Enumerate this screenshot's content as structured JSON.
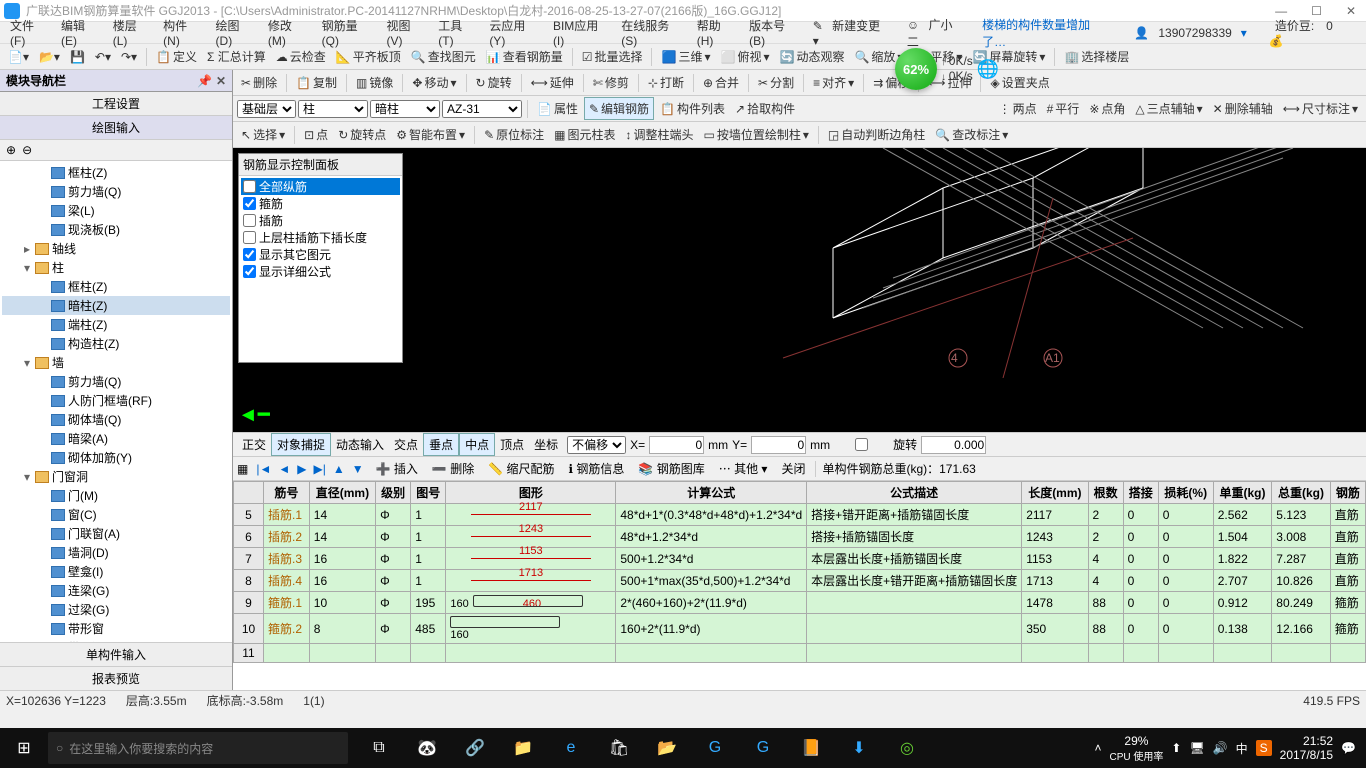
{
  "titlebar": {
    "title": "广联达BIM钢筋算量软件 GGJ2013 - [C:\\Users\\Administrator.PC-20141127NRHM\\Desktop\\白龙村-2016-08-25-13-27-07(2166版)_16G.GGJ12]"
  },
  "menu": {
    "items": [
      "文件(F)",
      "编辑(E)",
      "楼层(L)",
      "构件(N)",
      "绘图(D)",
      "修改(M)",
      "钢筋量(Q)",
      "视图(V)",
      "工具(T)",
      "云应用(Y)",
      "BIM应用(I)",
      "在线服务(S)",
      "帮助(H)",
      "版本号(B)"
    ],
    "new": "新建变更",
    "guang": "广小二",
    "notice": "楼梯的构件数量增加了…",
    "user": "13907298339",
    "credit_label": "造价豆:",
    "credit": "0"
  },
  "toolbar1": {
    "items": [
      "定义",
      "Σ 汇总计算",
      "云检查",
      "平齐板顶",
      "查找图元",
      "查看钢筋量",
      "批量选择",
      "三维",
      "俯视",
      "动态观察",
      "缩放",
      "平移",
      "屏幕旋转",
      "选择楼层"
    ]
  },
  "toolbar2": {
    "items": [
      "删除",
      "复制",
      "镜像",
      "移动",
      "旋转",
      "延伸",
      "修剪",
      "打断",
      "合并",
      "分割",
      "对齐",
      "偏移",
      "拉伸",
      "设置夹点"
    ]
  },
  "left": {
    "panel_title": "模块导航栏",
    "tab1": "工程设置",
    "tab2": "绘图输入",
    "tree": [
      {
        "l": 2,
        "icon": "item",
        "label": "框柱(Z)"
      },
      {
        "l": 2,
        "icon": "item",
        "label": "剪力墙(Q)"
      },
      {
        "l": 2,
        "icon": "item",
        "label": "梁(L)"
      },
      {
        "l": 2,
        "icon": "item",
        "label": "现浇板(B)"
      },
      {
        "l": 1,
        "icon": "folder",
        "exp": "▸",
        "label": "轴线"
      },
      {
        "l": 1,
        "icon": "folder",
        "exp": "▾",
        "label": "柱"
      },
      {
        "l": 2,
        "icon": "item",
        "label": "框柱(Z)"
      },
      {
        "l": 2,
        "icon": "item",
        "label": "暗柱(Z)",
        "sel": true
      },
      {
        "l": 2,
        "icon": "item",
        "label": "端柱(Z)"
      },
      {
        "l": 2,
        "icon": "item",
        "label": "构造柱(Z)"
      },
      {
        "l": 1,
        "icon": "folder",
        "exp": "▾",
        "label": "墙"
      },
      {
        "l": 2,
        "icon": "item",
        "label": "剪力墙(Q)"
      },
      {
        "l": 2,
        "icon": "item",
        "label": "人防门框墙(RF)"
      },
      {
        "l": 2,
        "icon": "item",
        "label": "砌体墙(Q)"
      },
      {
        "l": 2,
        "icon": "item",
        "label": "暗梁(A)"
      },
      {
        "l": 2,
        "icon": "item",
        "label": "砌体加筋(Y)"
      },
      {
        "l": 1,
        "icon": "folder",
        "exp": "▾",
        "label": "门窗洞"
      },
      {
        "l": 2,
        "icon": "item",
        "label": "门(M)"
      },
      {
        "l": 2,
        "icon": "item",
        "label": "窗(C)"
      },
      {
        "l": 2,
        "icon": "item",
        "label": "门联窗(A)"
      },
      {
        "l": 2,
        "icon": "item",
        "label": "墙洞(D)"
      },
      {
        "l": 2,
        "icon": "item",
        "label": "壁龛(I)"
      },
      {
        "l": 2,
        "icon": "item",
        "label": "连梁(G)"
      },
      {
        "l": 2,
        "icon": "item",
        "label": "过梁(G)"
      },
      {
        "l": 2,
        "icon": "item",
        "label": "带形窗"
      },
      {
        "l": 2,
        "icon": "item",
        "label": "带形洞"
      },
      {
        "l": 1,
        "icon": "folder",
        "exp": "▾",
        "label": "梁"
      },
      {
        "l": 2,
        "icon": "item",
        "label": "梁(L)"
      },
      {
        "l": 2,
        "icon": "item",
        "label": "圈梁(E)"
      },
      {
        "l": 1,
        "icon": "folder",
        "exp": "▾",
        "label": "板"
      }
    ],
    "bottom_tabs": [
      "单构件输入",
      "报表预览"
    ]
  },
  "subbar1": {
    "floor": "基础层",
    "member": "柱",
    "sub": "暗柱",
    "code": "AZ-31",
    "btns": [
      "属性",
      "编辑钢筋",
      "构件列表",
      "拾取构件"
    ],
    "right": [
      "两点",
      "平行",
      "点角",
      "三点辅轴",
      "删除辅轴",
      "尺寸标注"
    ]
  },
  "subbar2": {
    "items": [
      "选择",
      "点",
      "旋转点",
      "智能布置",
      "原位标注",
      "图元柱表",
      "调整柱端头",
      "按墙位置绘制柱",
      "自动判断边角柱",
      "查改标注"
    ]
  },
  "display_panel": {
    "title": "钢筋显示控制面板",
    "items": [
      {
        "label": "全部纵筋",
        "sel": true,
        "chk": false
      },
      {
        "label": "箍筋",
        "chk": true
      },
      {
        "label": "插筋",
        "chk": false
      },
      {
        "label": "上层柱插筋下插长度",
        "chk": false
      },
      {
        "label": "显示其它图元",
        "chk": true
      },
      {
        "label": "显示详细公式",
        "chk": true
      }
    ]
  },
  "axis_marks": {
    "a": "4",
    "b": "A1"
  },
  "snapbar": {
    "items": [
      {
        "label": "正交",
        "on": false
      },
      {
        "label": "对象捕捉",
        "on": true
      },
      {
        "label": "动态输入",
        "on": false
      },
      {
        "label": "交点",
        "on": false
      },
      {
        "label": "垂点",
        "on": true
      },
      {
        "label": "中点",
        "on": true
      },
      {
        "label": "顶点",
        "on": false
      },
      {
        "label": "坐标",
        "on": false
      }
    ],
    "offset": "不偏移",
    "x_label": "X=",
    "x": "0",
    "mm": "mm",
    "y_label": "Y=",
    "y": "0",
    "rot": "旋转",
    "rot_val": "0.000"
  },
  "actionbar": {
    "items": [
      "插入",
      "删除",
      "缩尺配筋",
      "钢筋信息",
      "钢筋图库",
      "其他",
      "关闭"
    ],
    "weight_label": "单构件钢筋总重(kg)：",
    "weight": "171.63"
  },
  "table": {
    "headers": [
      "",
      "筋号",
      "直径(mm)",
      "级别",
      "图号",
      "图形",
      "计算公式",
      "公式描述",
      "长度(mm)",
      "根数",
      "搭接",
      "损耗(%)",
      "单重(kg)",
      "总重(kg)",
      "钢筋"
    ],
    "rows": [
      {
        "n": "5",
        "name": "插筋.1",
        "dia": "14",
        "grade": "Φ",
        "fig": "1",
        "shape": "2117",
        "formula": "48*d+1*(0.3*48*d+48*d)+1.2*34*d",
        "desc": "搭接+错开距离+插筋锚固长度",
        "len": "2117",
        "cnt": "2",
        "lap": "0",
        "loss": "0",
        "uw": "2.562",
        "tw": "5.123",
        "type": "直筋"
      },
      {
        "n": "6",
        "name": "插筋.2",
        "dia": "14",
        "grade": "Φ",
        "fig": "1",
        "shape": "1243",
        "formula": "48*d+1.2*34*d",
        "desc": "搭接+插筋锚固长度",
        "len": "1243",
        "cnt": "2",
        "lap": "0",
        "loss": "0",
        "uw": "1.504",
        "tw": "3.008",
        "type": "直筋"
      },
      {
        "n": "7",
        "name": "插筋.3",
        "dia": "16",
        "grade": "Φ",
        "fig": "1",
        "shape": "1153",
        "formula": "500+1.2*34*d",
        "desc": "本层露出长度+插筋锚固长度",
        "len": "1153",
        "cnt": "4",
        "lap": "0",
        "loss": "0",
        "uw": "1.822",
        "tw": "7.287",
        "type": "直筋"
      },
      {
        "n": "8",
        "name": "插筋.4",
        "dia": "16",
        "grade": "Φ",
        "fig": "1",
        "shape": "1713",
        "formula": "500+1*max(35*d,500)+1.2*34*d",
        "desc": "本层露出长度+错开距离+插筋锚固长度",
        "len": "1713",
        "cnt": "4",
        "lap": "0",
        "loss": "0",
        "uw": "2.707",
        "tw": "10.826",
        "type": "直筋"
      },
      {
        "n": "9",
        "name": "箍筋.1",
        "dia": "10",
        "grade": "Φ",
        "fig": "195",
        "shape": "160|460",
        "formula": "2*(460+160)+2*(11.9*d)",
        "desc": "",
        "len": "1478",
        "cnt": "88",
        "lap": "0",
        "loss": "0",
        "uw": "0.912",
        "tw": "80.249",
        "type": "箍筋"
      },
      {
        "n": "10",
        "name": "箍筋.2",
        "dia": "8",
        "grade": "Φ",
        "fig": "485",
        "shape": "160",
        "formula": "160+2*(11.9*d)",
        "desc": "",
        "len": "350",
        "cnt": "88",
        "lap": "0",
        "loss": "0",
        "uw": "0.138",
        "tw": "12.166",
        "type": "箍筋"
      },
      {
        "n": "11",
        "name": "",
        "dia": "",
        "grade": "",
        "fig": "",
        "shape": "",
        "formula": "",
        "desc": "",
        "len": "",
        "cnt": "",
        "lap": "",
        "loss": "",
        "uw": "",
        "tw": "",
        "type": ""
      }
    ]
  },
  "status": {
    "coord": "X=102636 Y=1223",
    "floor_h": "层高:3.55m",
    "bottom_h": "底标高:-3.58m",
    "sel": "1(1)",
    "fps": "419.5 FPS"
  },
  "progress": {
    "pct": "62%",
    "up": "0K/s",
    "down": "0K/s"
  },
  "taskbar": {
    "search": "在这里输入你要搜索的内容",
    "cpu_label": "CPU 使用率",
    "cpu": "29%",
    "time": "21:52",
    "date": "2017/8/15"
  },
  "colors": {
    "accent": "#0078d7",
    "row_bg": "#d5f5d5",
    "rebar_name": "#b06000",
    "shape_val": "#cc0000"
  }
}
